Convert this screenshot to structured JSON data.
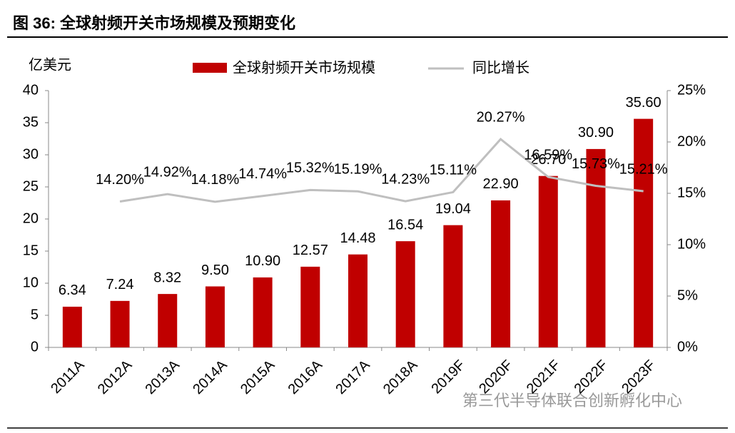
{
  "chart_data": {
    "type": "bar",
    "title": "图 36:   全球射频开关市场规模及预期变化",
    "y_label": "亿美元",
    "watermark": "第三代半导体联合创新孵化中心",
    "categories": [
      "2011A",
      "2012A",
      "2013A",
      "2014A",
      "2015A",
      "2016A",
      "2017A",
      "2018A",
      "2019F",
      "2020F",
      "2021F",
      "2022F",
      "2023F"
    ],
    "series": [
      {
        "name": "全球射频开关市场规模",
        "type": "bar",
        "axis": "y",
        "color": "#c00000",
        "values": [
          6.34,
          7.24,
          8.32,
          9.5,
          10.9,
          12.57,
          14.48,
          16.54,
          19.04,
          22.9,
          26.7,
          30.9,
          35.6
        ],
        "value_labels": [
          "6.34",
          "7.24",
          "8.32",
          "9.50",
          "10.90",
          "12.57",
          "14.48",
          "16.54",
          "19.04",
          "22.90",
          "26.70",
          "30.90",
          "35.60"
        ]
      },
      {
        "name": "同比增长",
        "type": "line",
        "axis": "y2",
        "color": "#bfbfbf",
        "values": [
          null,
          14.2,
          14.92,
          14.18,
          14.74,
          15.32,
          15.19,
          14.23,
          15.11,
          20.27,
          16.59,
          15.73,
          15.21
        ],
        "value_labels": [
          null,
          "14.20%",
          "14.92%",
          "14.18%",
          "14.74%",
          "15.32%",
          "15.19%",
          "14.23%",
          "15.11%",
          "20.27%",
          "16.59%",
          "15.73%",
          "15.21%"
        ]
      }
    ],
    "ylim": [
      0,
      40
    ],
    "yticks": [
      0,
      5,
      10,
      15,
      20,
      25,
      30,
      35,
      40
    ],
    "y2lim": [
      0,
      25
    ],
    "y2ticks": [
      {
        "value": 0,
        "label": "0%"
      },
      {
        "value": 5,
        "label": "5%"
      },
      {
        "value": 10,
        "label": "10%"
      },
      {
        "value": 15,
        "label": "15%"
      },
      {
        "value": 20,
        "label": "20%"
      },
      {
        "value": 25,
        "label": "25%"
      }
    ],
    "legend": "top"
  }
}
